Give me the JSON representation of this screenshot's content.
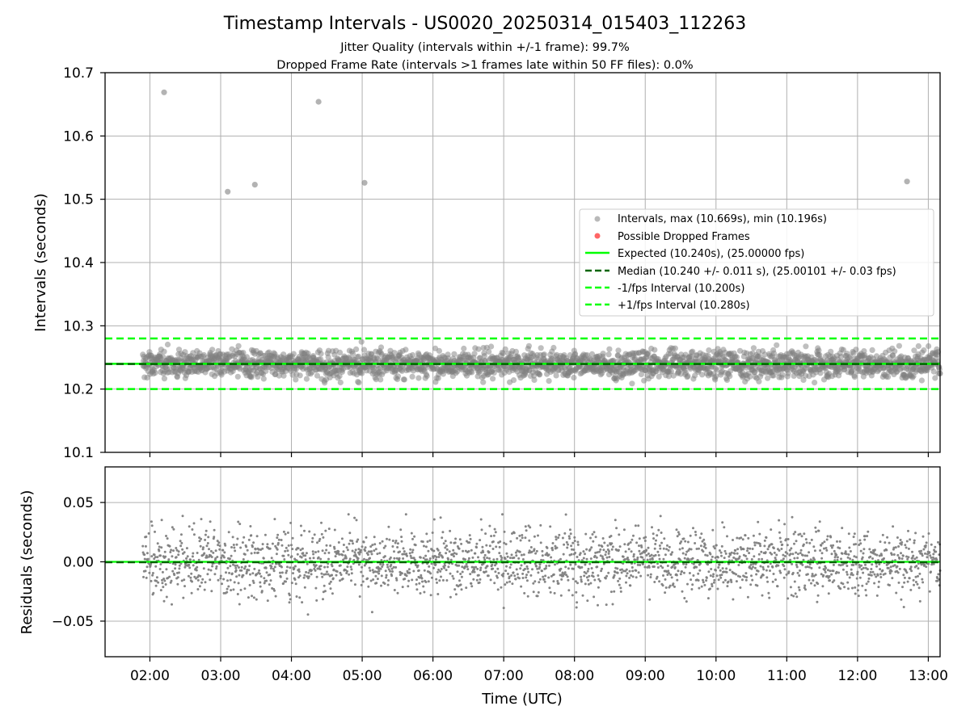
{
  "figure": {
    "title": "Timestamp Intervals - US0020_20250314_015403_112263",
    "subtitle_1": "Jitter Quality (intervals within +/-1 frame): 99.7%",
    "subtitle_2": "Dropped Frame Rate (intervals >1 frames late within 50 FF files): 0.0%"
  },
  "colors": {
    "points": "#808080",
    "dropped": "#ff0000",
    "expected": "#00ff00",
    "median": "#006400",
    "bounds": "#00ff00",
    "grid": "#b0b0b0"
  },
  "chart_data": [
    {
      "type": "scatter",
      "panel": "top",
      "ylabel": "Intervals (seconds)",
      "xlabel": "",
      "ylim": [
        10.1,
        10.7
      ],
      "yticks": [
        "10.1",
        "10.2",
        "10.3",
        "10.4",
        "10.5",
        "10.6",
        "10.7"
      ],
      "xlim": [
        "01:22",
        "13:10"
      ],
      "grid": true,
      "legend_placement": "center-right",
      "legend": [
        "Intervals, max (10.669s), min (10.196s)",
        "Possible Dropped Frames",
        "Expected (10.240s), (25.00000 fps)",
        "Median (10.240 +/- 0.011 s), (25.00101 +/- 0.03 fps)",
        "-1/fps Interval (10.200s)",
        "+1/fps Interval (10.280s)"
      ],
      "series": [
        {
          "name": "Intervals, max (10.669s), min (10.196s)",
          "kind": "points",
          "x_range": [
            "01:54",
            "13:10"
          ],
          "center": 10.24,
          "spread": 0.011,
          "max": 10.669,
          "min": 10.196
        },
        {
          "name": "Possible Dropped Frames",
          "kind": "points",
          "x": [],
          "y": []
        }
      ],
      "outliers": [
        {
          "x": "02:12",
          "y": 10.669
        },
        {
          "x": "03:06",
          "y": 10.512
        },
        {
          "x": "03:29",
          "y": 10.523
        },
        {
          "x": "04:23",
          "y": 10.654
        },
        {
          "x": "05:02",
          "y": 10.526
        },
        {
          "x": "12:42",
          "y": 10.528
        }
      ],
      "lines": [
        {
          "name": "Expected (10.240s), (25.00000 fps)",
          "y": 10.24,
          "style": "solid"
        },
        {
          "name": "Median (10.240 +/- 0.011 s), (25.00101 +/- 0.03 fps)",
          "y": 10.2396,
          "style": "dashed"
        },
        {
          "name": "-1/fps Interval (10.200s)",
          "y": 10.2,
          "style": "dashed"
        },
        {
          "name": "+1/fps Interval (10.280s)",
          "y": 10.28,
          "style": "dashed"
        }
      ]
    },
    {
      "type": "scatter",
      "panel": "bottom",
      "ylabel": "Residuals (seconds)",
      "xlabel": "Time (UTC)",
      "ylim": [
        -0.08,
        0.08
      ],
      "yticks": [
        "−0.05",
        "0.00",
        "0.05"
      ],
      "ytick_values": [
        -0.05,
        0.0,
        0.05
      ],
      "xlim": [
        "01:22",
        "13:10"
      ],
      "xticks": [
        "02:00",
        "03:00",
        "04:00",
        "05:00",
        "06:00",
        "07:00",
        "08:00",
        "09:00",
        "10:00",
        "11:00",
        "12:00",
        "13:00"
      ],
      "grid": true,
      "series": [
        {
          "name": "Residuals",
          "kind": "points",
          "x_range": [
            "01:54",
            "13:10"
          ],
          "center": 0.0,
          "spread": 0.014,
          "max": 0.04,
          "min": -0.045
        }
      ],
      "lines": [
        {
          "name": "zero",
          "y": 0.0,
          "style": "solid"
        },
        {
          "name": "median residual",
          "y": -0.0004,
          "style": "dashed"
        }
      ]
    }
  ]
}
